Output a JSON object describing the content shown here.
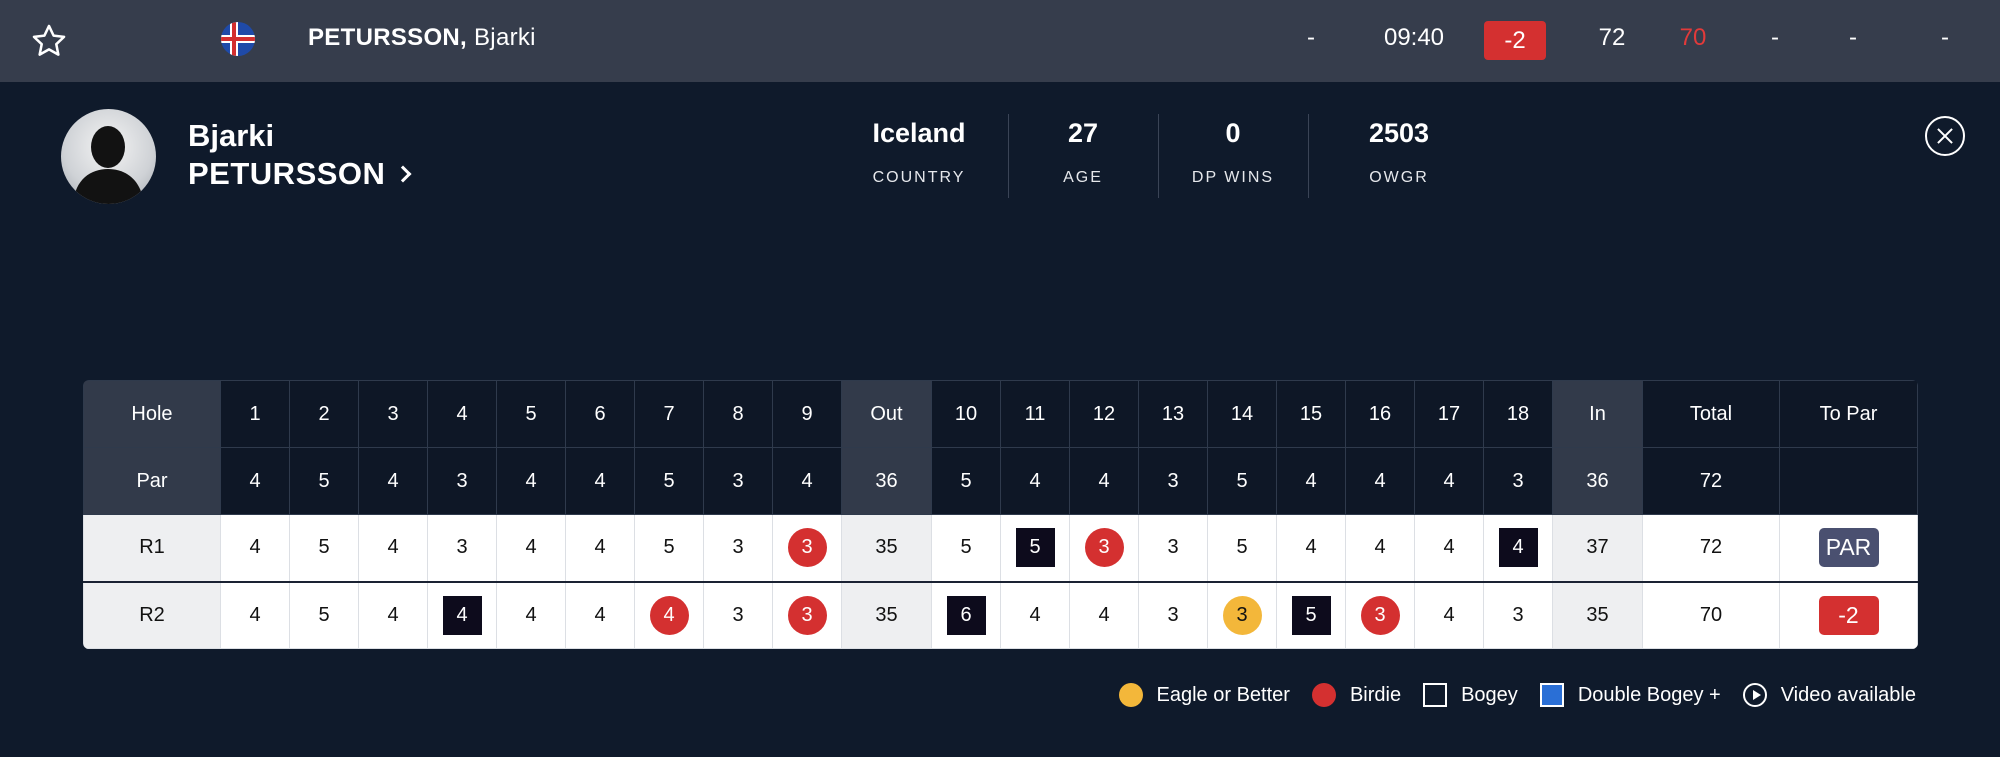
{
  "topbar": {
    "player_last": "PETURSSON,",
    "player_first": "Bjarki",
    "cells": [
      "-",
      "09:40",
      "-2",
      "72",
      "70",
      "-",
      "-",
      "-"
    ]
  },
  "profile": {
    "first_name": "Bjarki",
    "last_name": "PETURSSON",
    "stats": [
      {
        "value": "Iceland",
        "label": "COUNTRY"
      },
      {
        "value": "27",
        "label": "AGE"
      },
      {
        "value": "0",
        "label": "DP WINS"
      },
      {
        "value": "2503",
        "label": "OWGR"
      }
    ]
  },
  "scorecard": {
    "header": [
      "Hole",
      "1",
      "2",
      "3",
      "4",
      "5",
      "6",
      "7",
      "8",
      "9",
      "Out",
      "10",
      "11",
      "12",
      "13",
      "14",
      "15",
      "16",
      "17",
      "18",
      "In",
      "Total",
      "To Par"
    ],
    "par": [
      "Par",
      "4",
      "5",
      "4",
      "3",
      "4",
      "4",
      "5",
      "3",
      "4",
      "36",
      "5",
      "4",
      "4",
      "3",
      "5",
      "4",
      "4",
      "4",
      "3",
      "36",
      "72",
      ""
    ],
    "rounds": [
      {
        "label": "R1",
        "scores": [
          "4",
          "5",
          "4",
          "3",
          "4",
          "4",
          "5",
          "3",
          "3",
          "35",
          "5",
          "5",
          "3",
          "3",
          "5",
          "4",
          "4",
          "4",
          "4",
          "37",
          "72"
        ],
        "marks": [
          "",
          "",
          "",
          "",
          "",
          "",
          "",
          "",
          "birdie",
          "",
          "",
          "bogey",
          "birdie",
          "",
          "",
          "",
          "",
          "",
          "bogey",
          "",
          ""
        ],
        "to_par": "PAR",
        "to_par_style": "even"
      },
      {
        "label": "R2",
        "scores": [
          "4",
          "5",
          "4",
          "4",
          "4",
          "4",
          "4",
          "3",
          "3",
          "35",
          "6",
          "4",
          "4",
          "3",
          "3",
          "5",
          "3",
          "4",
          "3",
          "35",
          "70"
        ],
        "marks": [
          "",
          "",
          "",
          "bogey",
          "",
          "",
          "birdie",
          "",
          "birdie",
          "",
          "bogey",
          "",
          "",
          "",
          "eagle",
          "bogey",
          "birdie",
          "",
          "",
          "",
          ""
        ],
        "to_par": "-2",
        "to_par_style": "under"
      }
    ]
  },
  "legend": [
    {
      "icon": "eagle-dot",
      "label": "Eagle or Better"
    },
    {
      "icon": "birdie-dot",
      "label": "Birdie"
    },
    {
      "icon": "bogey-square",
      "label": "Bogey"
    },
    {
      "icon": "double-bogey-square",
      "label": "Double Bogey +"
    },
    {
      "icon": "play-circle-icon",
      "label": "Video available"
    }
  ],
  "colors": {
    "birdie": "#d43030",
    "eagle": "#f3b73a",
    "bogey": "#0d0b1c",
    "double_bogey": "#2a6fd6"
  }
}
